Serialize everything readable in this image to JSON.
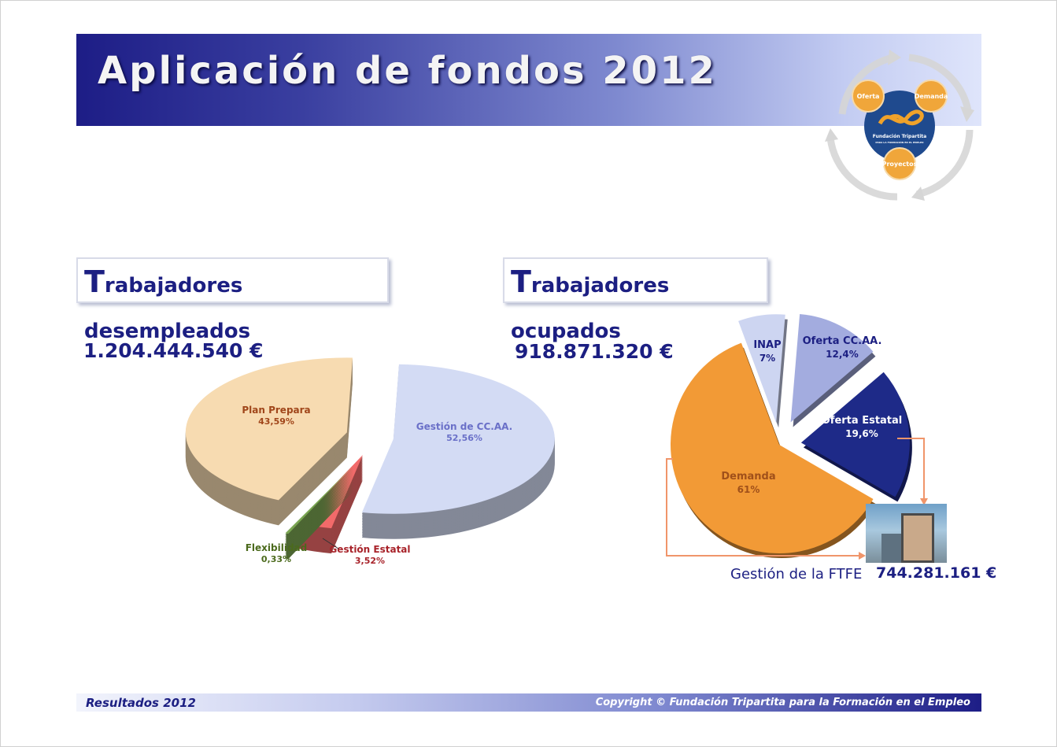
{
  "slide": {
    "title": "Aplicación de fondos 2012",
    "logo": {
      "top": "Oferta",
      "right": "Demanda",
      "bottom": "Proyectos",
      "name": "Fundación Tripartita",
      "tagline": "PARA LA FORMACIÓN EN EL EMPLEO"
    },
    "footer_left": "Resultados 2012",
    "footer_right": "Copyright © Fundación Tripartita para la  Formación en el Empleo"
  },
  "left_panel": {
    "heading_initial": "T",
    "heading_rest": "rabajadores desempleados",
    "amount": "1.204.444.540 €"
  },
  "right_panel": {
    "heading_initial": "T",
    "heading_rest": "rabajadores ocupados",
    "amount": "918.871.320 €",
    "ftfe_label": "Gestión de la FTFE",
    "ftfe_amount": "744.281.161 €"
  },
  "colors": {
    "brand": "#1c1f82",
    "arrow": "#f0956a"
  },
  "chart_data": [
    {
      "type": "pie",
      "title": "Trabajadores desempleados",
      "categories": [
        "Gestión de CC.AA.",
        "Gestión Estatal",
        "Flexibilidad",
        "Plan Prepara"
      ],
      "values": [
        52.56,
        3.52,
        0.33,
        43.59
      ],
      "labels": [
        "52,56%",
        "3,52%",
        "0,33%",
        "43,59%"
      ],
      "colors": [
        "#d3dbf4",
        "#f26a6a",
        "#7aa552",
        "#f7dbb1"
      ],
      "label_colors": [
        "#6a70c8",
        "#a8232a",
        "#4b6a1c",
        "#a0461a"
      ]
    },
    {
      "type": "pie",
      "title": "Trabajadores ocupados",
      "categories": [
        "Demanda",
        "INAP",
        "Oferta CC.AA.",
        "Oferta Estatal"
      ],
      "values": [
        61,
        7,
        12.4,
        19.6
      ],
      "labels": [
        "61%",
        "7%",
        "12,4%",
        "19,6%"
      ],
      "colors": [
        "#f29a36",
        "#cdd5f1",
        "#a3acdf",
        "#1e2a88"
      ],
      "label_colors": [
        "#a0501a",
        "#1c1f82",
        "#1c1f82",
        "#ffffff"
      ]
    }
  ]
}
